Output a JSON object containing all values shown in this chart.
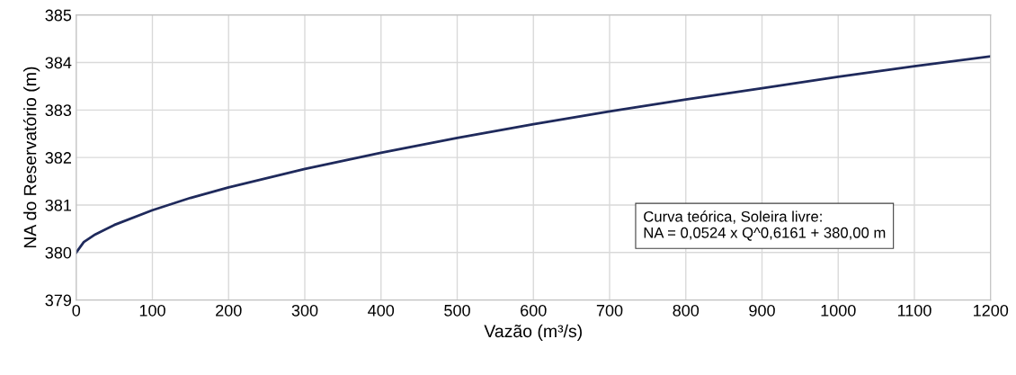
{
  "chart_data": {
    "type": "line",
    "xlabel": "Vazão (m³/s)",
    "ylabel": "NA do Reservatório (m)",
    "x": [
      0,
      10,
      25,
      50,
      100,
      150,
      200,
      300,
      400,
      500,
      600,
      700,
      800,
      900,
      1000,
      1100,
      1200
    ],
    "series": [
      {
        "color": "#1f2a5c",
        "values": [
          380.0,
          380.22,
          380.38,
          380.58,
          380.89,
          381.15,
          381.37,
          381.76,
          382.1,
          382.41,
          382.7,
          382.97,
          383.22,
          383.46,
          383.7,
          383.92,
          384.13
        ]
      }
    ],
    "xlim": [
      0,
      1200
    ],
    "xticks": [
      0,
      100,
      200,
      300,
      400,
      500,
      600,
      700,
      800,
      900,
      1000,
      1100,
      1200
    ],
    "ylim": [
      379,
      385
    ],
    "yticks": [
      379,
      380,
      381,
      382,
      383,
      384,
      385
    ],
    "grid": true,
    "marker": "none",
    "line_style": "solid",
    "annotations": [
      "Curva teórica, Soleira livre:\nNA = 0,0524 x Q^0,6161 + 380,00 m"
    ]
  }
}
